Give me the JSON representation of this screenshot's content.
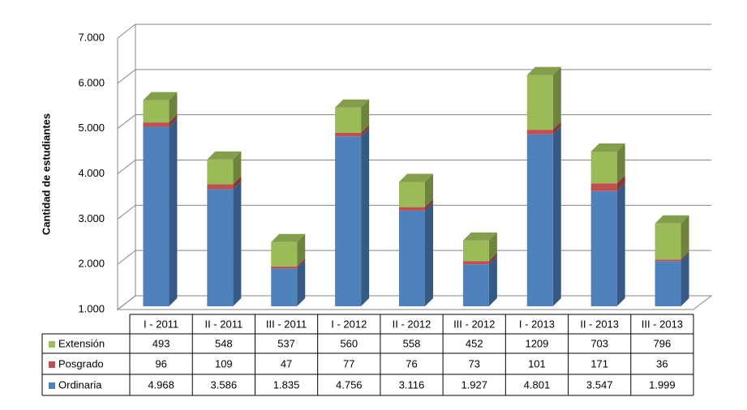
{
  "chart_data": {
    "type": "bar3d_stacked",
    "y_label": "Cantidad de estudiantes",
    "categories": [
      "I - 2011",
      "II - 2011",
      "III - 2011",
      "I - 2012",
      "II - 2012",
      "III - 2012",
      "I - 2013",
      "II - 2013",
      "III - 2013"
    ],
    "series": [
      {
        "name": "Extensión",
        "color": "#9bbb59",
        "values": [
          493,
          548,
          537,
          560,
          558,
          452,
          1209,
          703,
          796
        ]
      },
      {
        "name": "Posgrado",
        "color": "#c0504d",
        "values": [
          96,
          109,
          47,
          77,
          76,
          73,
          101,
          171,
          36
        ]
      },
      {
        "name": "Ordinaria",
        "color": "#4f81bd",
        "values": [
          4968,
          3586,
          1835,
          4756,
          3116,
          1927,
          4801,
          3547,
          1999
        ],
        "value_labels": [
          "4.968",
          "3.586",
          "1.835",
          "4.756",
          "3.116",
          "1.927",
          "4.801",
          "3.547",
          "1.999"
        ]
      }
    ],
    "ylim": [
      1000,
      7000
    ],
    "yticks": [
      {
        "value": 1000,
        "label": "1.000"
      },
      {
        "value": 2000,
        "label": "2.000"
      },
      {
        "value": 3000,
        "label": "3.000"
      },
      {
        "value": 4000,
        "label": "4.000"
      },
      {
        "value": 5000,
        "label": "5.000"
      },
      {
        "value": 6000,
        "label": "6.000"
      },
      {
        "value": 7000,
        "label": "7.000"
      }
    ],
    "grid": true
  }
}
